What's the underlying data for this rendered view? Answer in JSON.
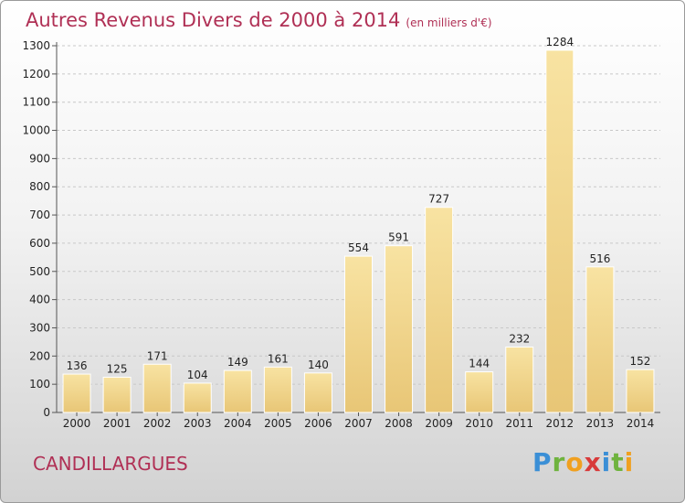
{
  "chart_data": {
    "type": "bar",
    "title": "Autres Revenus Divers de 2000 à 2014",
    "subtitle": "(en milliers d'€)",
    "categories": [
      "2000",
      "2001",
      "2002",
      "2003",
      "2004",
      "2005",
      "2006",
      "2007",
      "2008",
      "2009",
      "2010",
      "2011",
      "2012",
      "2013",
      "2014"
    ],
    "values": [
      136,
      125,
      171,
      104,
      149,
      161,
      140,
      554,
      591,
      727,
      144,
      232,
      1284,
      516,
      152
    ],
    "ylim": [
      0,
      1300
    ],
    "yticks": [
      0,
      100,
      200,
      300,
      400,
      500,
      600,
      700,
      800,
      900,
      1000,
      1100,
      1200,
      1300
    ],
    "grid": true,
    "bar_color": "#e8c676",
    "bar_color_light": "#f8e3a2"
  },
  "footer": {
    "location": "CANDILLARGUES",
    "logo_letters": [
      "P",
      "r",
      "o",
      "x",
      "i",
      "t",
      "i"
    ],
    "logo_colors": [
      "#3b8fd6",
      "#6fb33e",
      "#f0a020",
      "#d83a3a",
      "#3b8fd6",
      "#6fb33e",
      "#f0a020"
    ]
  }
}
